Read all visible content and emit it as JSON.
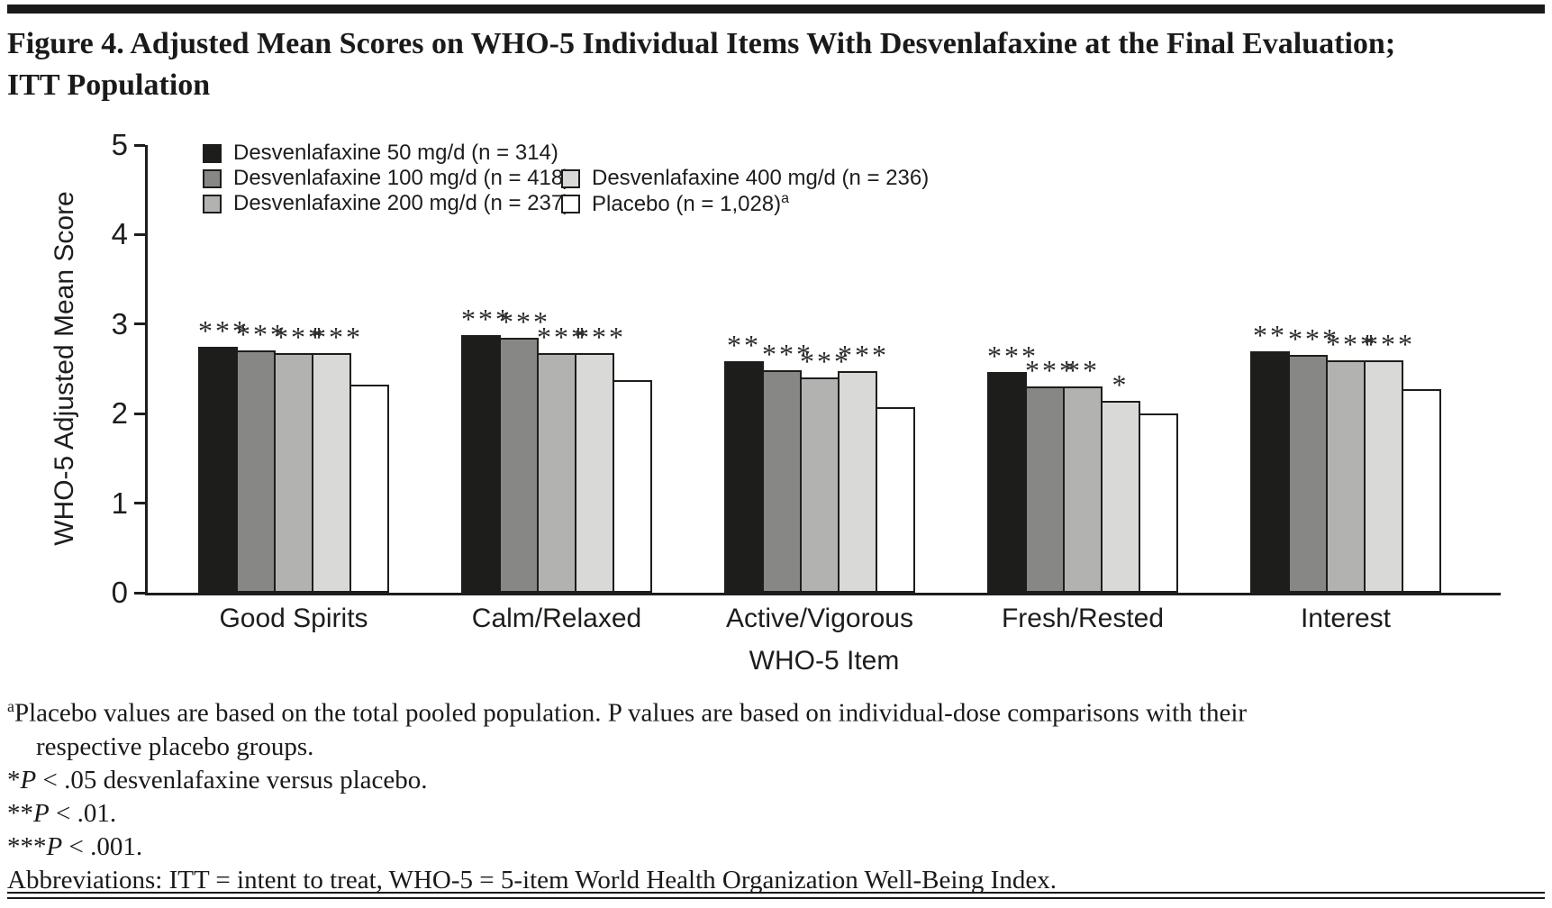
{
  "title": {
    "line1": "Figure 4. Adjusted Mean Scores on WHO-5 Individual Items With Desvenlafaxine at the Final Evaluation;",
    "line2": "ITT Population"
  },
  "chart_data": {
    "type": "bar",
    "title": "Adjusted Mean Scores on WHO-5 Individual Items With Desvenlafaxine at the Final Evaluation; ITT Population",
    "xlabel": "WHO-5 Item",
    "ylabel": "WHO-5 Adjusted Mean Score",
    "ylim": [
      0,
      5
    ],
    "yticks": [
      0,
      1,
      2,
      3,
      4,
      5
    ],
    "grid": false,
    "categories": [
      "Good Spirits",
      "Calm/Relaxed",
      "Active/Vigorous",
      "Fresh/Rested",
      "Interest"
    ],
    "series": [
      {
        "name": "Desvenlafaxine 50 mg/d (n = 314)",
        "color": "#1d1d1b",
        "values": [
          2.75,
          2.88,
          2.59,
          2.46,
          2.7
        ],
        "significance": [
          "***",
          "***",
          "**",
          "***",
          "**"
        ]
      },
      {
        "name": "Desvenlafaxine 100 mg/d (n = 418)",
        "color": "#878785",
        "values": [
          2.71,
          2.85,
          2.49,
          2.3,
          2.66
        ],
        "significance": [
          "***",
          "***",
          "***",
          "***",
          "***"
        ]
      },
      {
        "name": "Desvenlafaxine 200 mg/d (n = 237)",
        "color": "#b2b2b1",
        "values": [
          2.68,
          2.68,
          2.4,
          2.3,
          2.6
        ],
        "significance": [
          "***",
          "***",
          "***",
          "**",
          "***"
        ]
      },
      {
        "name": "Desvenlafaxine 400 mg/d (n = 236)",
        "color": "#d9d9d8",
        "values": [
          2.68,
          2.68,
          2.48,
          2.14,
          2.6
        ],
        "significance": [
          "***",
          "***",
          "***",
          "*",
          "***"
        ]
      },
      {
        "name": "Placebo (n = 1,028)",
        "name_superscript": "a",
        "color": "#ffffff",
        "values": [
          2.32,
          2.37,
          2.07,
          2.0,
          2.27
        ],
        "significance": [
          "",
          "",
          "",
          "",
          ""
        ]
      }
    ],
    "bar_outline_color": "#1d1d1b",
    "legend": {
      "position": "top-left",
      "columns": [
        [
          0,
          1,
          2
        ],
        [
          3,
          4
        ]
      ],
      "row_offsets": [
        0,
        1
      ]
    }
  },
  "footnotes": {
    "placebo_note_sup": "a",
    "placebo_note_line1": "Placebo values are based on the total pooled population. P values are based on individual-dose comparisons with their",
    "placebo_note_line2": "respective placebo groups.",
    "sig_notes": [
      {
        "stars": "*",
        "p": "P",
        "rest": " < .05 desvenlafaxine versus placebo."
      },
      {
        "stars": "**",
        "p": "P",
        "rest": " < .01."
      },
      {
        "stars": "***",
        "p": "P",
        "rest": " < .001."
      }
    ],
    "abbreviations": "Abbreviations: ITT = intent to treat, WHO-5 = 5-item World Health Organization Well-Being Index."
  }
}
